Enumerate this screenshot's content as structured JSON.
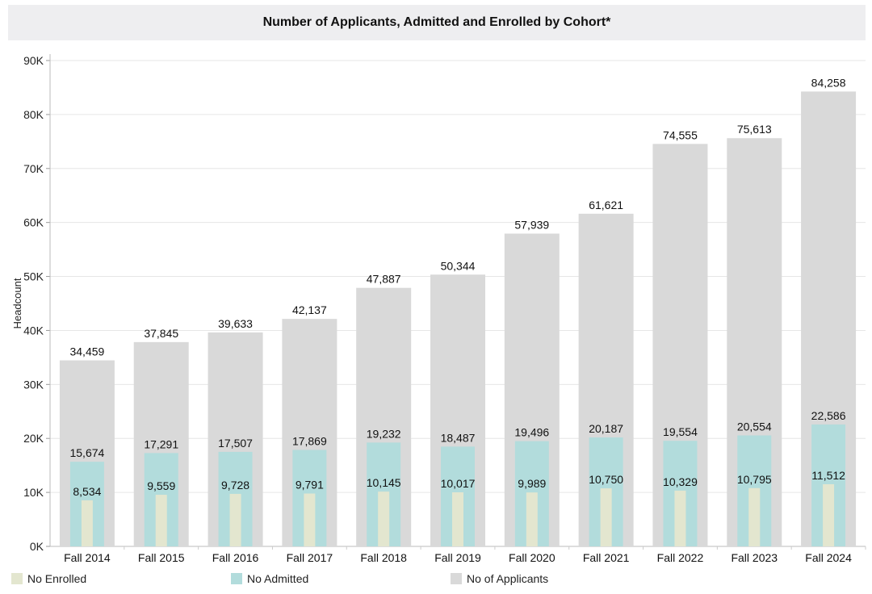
{
  "chart_data": {
    "type": "bar",
    "title": "Number of Applicants, Admitted and Enrolled by Cohort*",
    "ylabel": "Headcount",
    "xlabel": "",
    "ylim": [
      0,
      90000
    ],
    "yticks": [
      0,
      10000,
      20000,
      30000,
      40000,
      50000,
      60000,
      70000,
      80000,
      90000
    ],
    "ytick_labels": [
      "0K",
      "10K",
      "20K",
      "30K",
      "40K",
      "50K",
      "60K",
      "70K",
      "80K",
      "90K"
    ],
    "grid": true,
    "legend_position": "bottom",
    "categories": [
      "Fall 2014",
      "Fall 2015",
      "Fall 2016",
      "Fall 2017",
      "Fall 2018",
      "Fall 2019",
      "Fall 2020",
      "Fall 2021",
      "Fall 2022",
      "Fall 2023",
      "Fall 2024"
    ],
    "series": [
      {
        "name": "No of Applicants",
        "color": "#d9d9d9",
        "values": [
          34459,
          37845,
          39633,
          42137,
          47887,
          50344,
          57939,
          61621,
          74555,
          75613,
          84258
        ],
        "labels": [
          "34,459",
          "37,845",
          "39,633",
          "42,137",
          "47,887",
          "50,344",
          "57,939",
          "61,621",
          "74,555",
          "75,613",
          "84,258"
        ]
      },
      {
        "name": "No Admitted",
        "color": "#b2dcdc",
        "values": [
          15674,
          17291,
          17507,
          17869,
          19232,
          18487,
          19496,
          20187,
          19554,
          20554,
          22586
        ],
        "labels": [
          "15,674",
          "17,291",
          "17,507",
          "17,869",
          "19,232",
          "18,487",
          "19,496",
          "20,187",
          "19,554",
          "20,554",
          "22,586"
        ]
      },
      {
        "name": "No Enrolled",
        "color": "#e3e6cf",
        "values": [
          8534,
          9559,
          9728,
          9791,
          10145,
          10017,
          9989,
          10750,
          10329,
          10795,
          11512
        ],
        "labels": [
          "8,534",
          "9,559",
          "9,728",
          "9,791",
          "10,145",
          "10,017",
          "9,989",
          "10,750",
          "10,329",
          "10,795",
          "11,512"
        ]
      }
    ],
    "legend": [
      {
        "name": "No Enrolled",
        "color": "#e3e6cf"
      },
      {
        "name": "No Admitted",
        "color": "#b2dcdc"
      },
      {
        "name": "No of Applicants",
        "color": "#d9d9d9"
      }
    ]
  }
}
